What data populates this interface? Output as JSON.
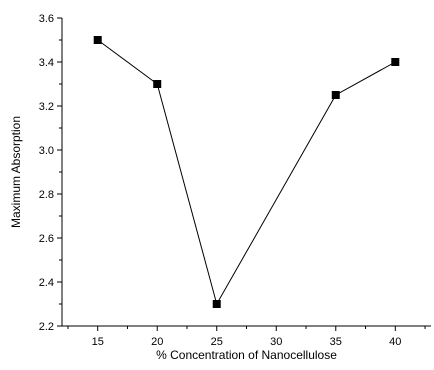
{
  "chart_data": {
    "type": "line",
    "title": "",
    "xlabel": "% Concentration of Nanocellulose",
    "ylabel": "Maximum Absorption",
    "xlim": [
      12,
      43
    ],
    "ylim": [
      2.2,
      3.6
    ],
    "xticks": [
      15,
      20,
      25,
      30,
      35,
      40
    ],
    "yticks": [
      2.2,
      2.4,
      2.6,
      2.8,
      3.0,
      3.2,
      3.4,
      3.6
    ],
    "ytick_labels": [
      "2.2",
      "2.4",
      "2.6",
      "2.8",
      "3.0",
      "3.2",
      "3.4",
      "3.6"
    ],
    "grid": false,
    "marker": "square",
    "colors": {
      "line": "#000000",
      "marker": "#000000"
    },
    "series": [
      {
        "x": [
          15,
          20,
          25,
          35,
          40
        ],
        "y": [
          3.5,
          3.3,
          2.3,
          3.25,
          3.4
        ]
      }
    ]
  }
}
